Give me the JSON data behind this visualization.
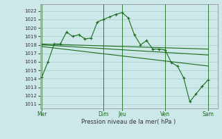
{
  "xlabel": "Pression niveau de la mer( hPa )",
  "ylim": [
    1010.5,
    1022.8
  ],
  "yticks": [
    1011,
    1012,
    1013,
    1014,
    1015,
    1016,
    1017,
    1018,
    1019,
    1020,
    1021,
    1022
  ],
  "background_color": "#cce8e8",
  "grid_color": "#aacccc",
  "line_color": "#1a6b1a",
  "day_labels": [
    "Mer",
    "Dim",
    "Jeu",
    "Ven",
    "Sam"
  ],
  "day_positions": [
    0,
    10,
    13,
    20,
    27
  ],
  "xlim": [
    -0.3,
    28.5
  ],
  "series1_x": [
    0,
    1,
    2,
    3,
    4,
    5,
    6,
    7,
    8,
    9,
    10,
    11,
    12,
    13,
    14,
    15,
    16,
    17,
    18,
    19,
    20,
    21,
    22,
    23,
    24,
    25,
    26,
    27
  ],
  "series1_y": [
    1014.2,
    1016.0,
    1018.1,
    1018.1,
    1019.5,
    1019.0,
    1019.2,
    1018.7,
    1018.8,
    1020.7,
    1021.0,
    1021.3,
    1021.6,
    1021.8,
    1021.2,
    1019.2,
    1018.0,
    1018.5,
    1017.5,
    1017.5,
    1017.4,
    1015.9,
    1015.5,
    1014.1,
    1011.3,
    1012.2,
    1013.1,
    1013.9
  ],
  "series2_x": [
    0,
    27
  ],
  "series2_y": [
    1018.1,
    1017.5
  ],
  "series3_x": [
    0,
    27
  ],
  "series3_y": [
    1018.0,
    1016.8
  ],
  "series4_x": [
    0,
    27
  ],
  "series4_y": [
    1017.8,
    1015.5
  ]
}
